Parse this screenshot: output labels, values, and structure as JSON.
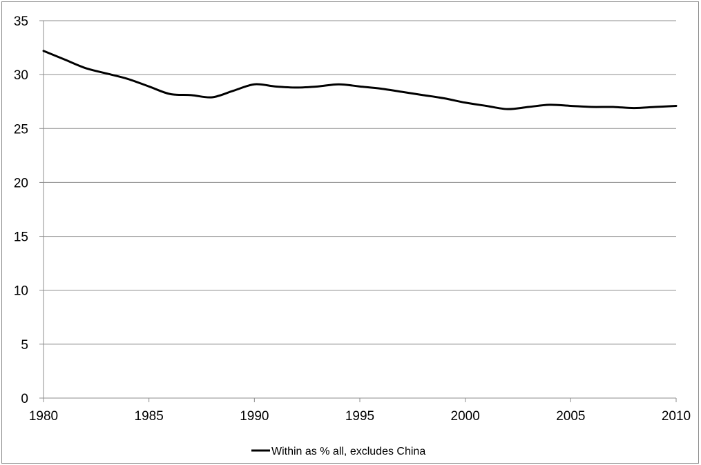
{
  "chart_data": {
    "type": "line",
    "title": "",
    "xlabel": "",
    "ylabel": "",
    "xlim": [
      1980,
      2010
    ],
    "ylim": [
      0,
      35
    ],
    "x_ticks": [
      1980,
      1985,
      1990,
      1995,
      2000,
      2005,
      2010
    ],
    "y_ticks": [
      0,
      5,
      10,
      15,
      20,
      25,
      30,
      35
    ],
    "grid": "horizontal",
    "legend_position": "bottom-center",
    "series": [
      {
        "name": "Within as % all, excludes China",
        "color": "#000000",
        "x": [
          1980,
          1981,
          1982,
          1983,
          1984,
          1985,
          1986,
          1987,
          1988,
          1989,
          1990,
          1991,
          1992,
          1993,
          1994,
          1995,
          1996,
          1997,
          1998,
          1999,
          2000,
          2001,
          2002,
          2003,
          2004,
          2005,
          2006,
          2007,
          2008,
          2009,
          2010
        ],
        "y": [
          32.2,
          31.4,
          30.6,
          30.1,
          29.6,
          28.9,
          28.2,
          28.1,
          27.9,
          28.5,
          29.1,
          28.9,
          28.8,
          28.9,
          29.1,
          28.9,
          28.7,
          28.4,
          28.1,
          27.8,
          27.4,
          27.1,
          26.8,
          27.0,
          27.2,
          27.1,
          27.0,
          27.0,
          26.9,
          27.0,
          27.1
        ]
      }
    ]
  }
}
